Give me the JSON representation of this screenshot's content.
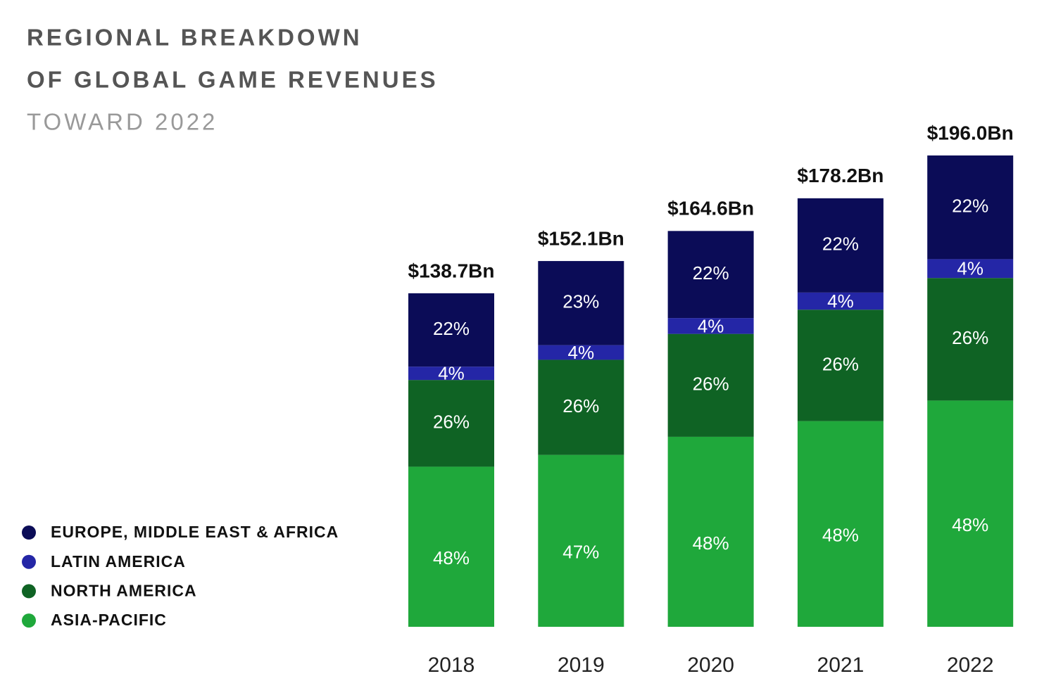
{
  "chart_data": {
    "type": "stacked-bar",
    "title": [
      "REGIONAL BREAKDOWN",
      "OF GLOBAL GAME REVENUES"
    ],
    "subtitle": "TOWARD 2022",
    "categories": [
      "2018",
      "2019",
      "2020",
      "2021",
      "2022"
    ],
    "totals": {
      "values": [
        138.7,
        152.1,
        164.6,
        178.2,
        196.0
      ],
      "value_labels": [
        "$138.7Bn",
        "$152.1Bn",
        "$164.6Bn",
        "$178.2Bn",
        "$196.0Bn"
      ]
    },
    "series": [
      {
        "name": "EUROPE, MIDDLE EAST & AFRICA",
        "color": "#0b0c57",
        "values": [
          22,
          23,
          22,
          22,
          22
        ],
        "value_labels": [
          "22%",
          "23%",
          "22%",
          "22%",
          "22%"
        ]
      },
      {
        "name": "LATIN AMERICA",
        "color": "#2426a6",
        "values": [
          4,
          4,
          4,
          4,
          4
        ],
        "value_labels": [
          "4%",
          "4%",
          "4%",
          "4%",
          "4%"
        ]
      },
      {
        "name": "NORTH AMERICA",
        "color": "#0f6324",
        "values": [
          26,
          26,
          26,
          26,
          26
        ],
        "value_labels": [
          "26%",
          "26%",
          "26%",
          "26%",
          "26%"
        ]
      },
      {
        "name": "ASIA-PACIFIC",
        "color": "#1fa83b",
        "values": [
          48,
          47,
          48,
          48,
          48
        ],
        "value_labels": [
          "48%",
          "47%",
          "48%",
          "48%",
          "48%"
        ]
      }
    ],
    "legend": "bottom-left"
  }
}
